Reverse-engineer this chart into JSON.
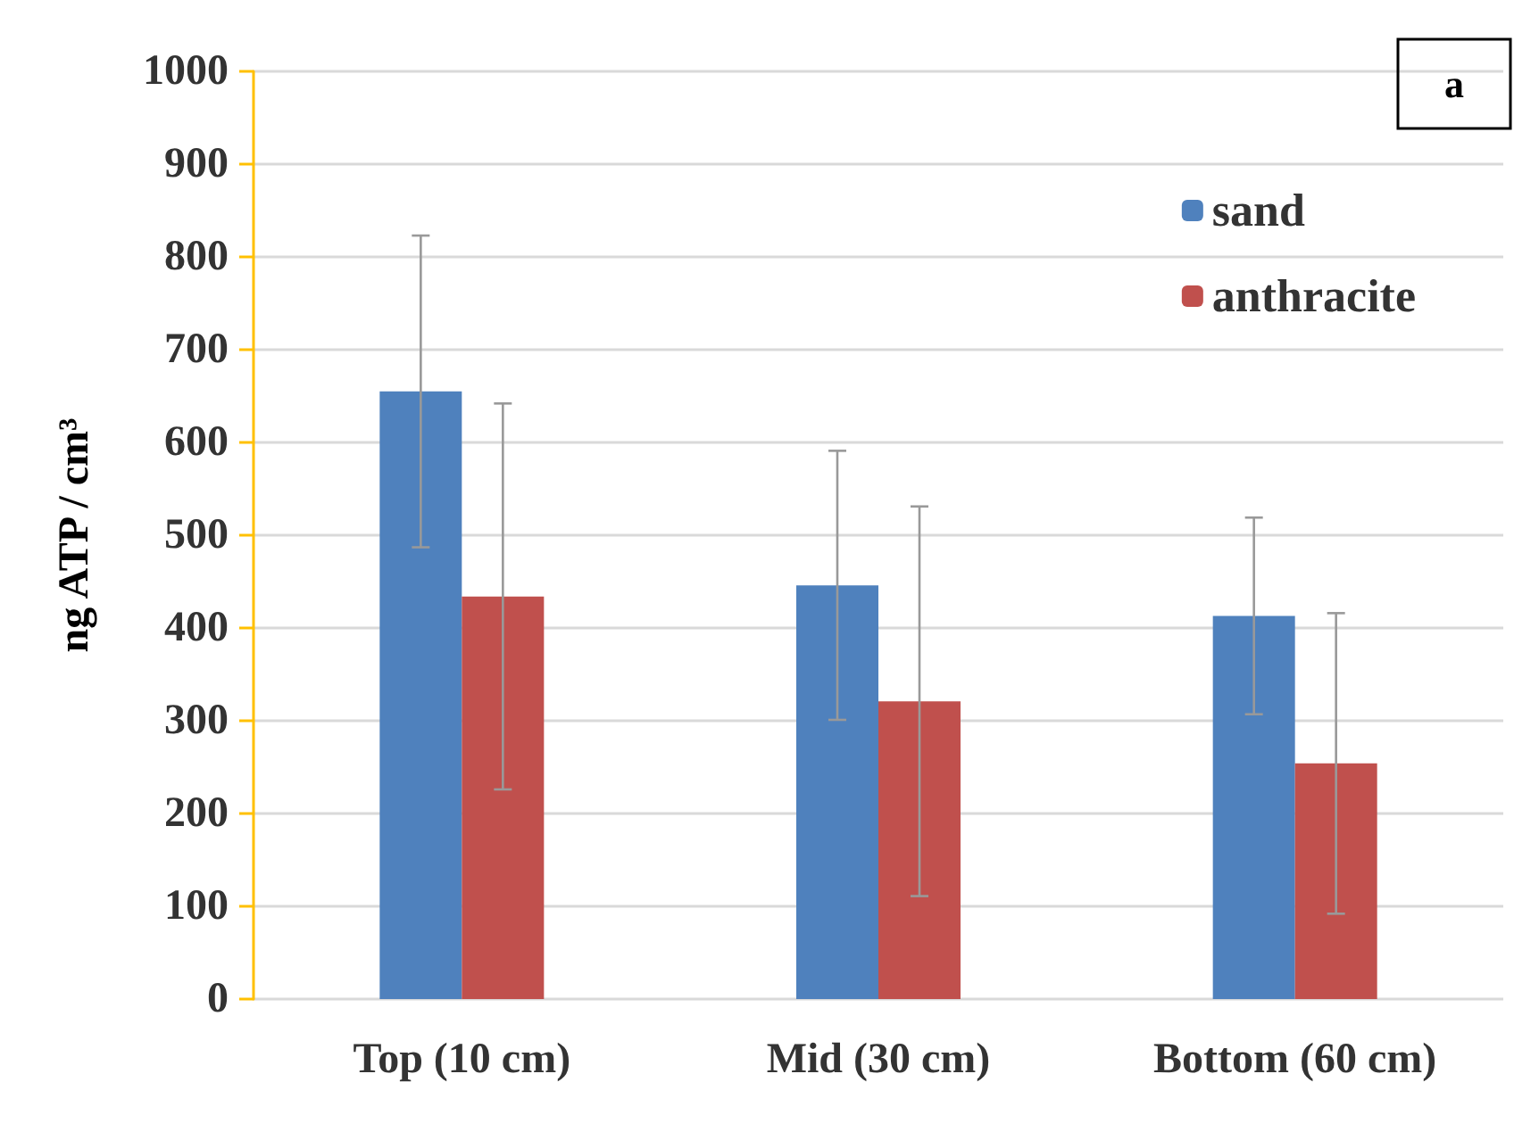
{
  "chart_data": {
    "type": "bar",
    "ylabel": "ng ATP / cm³",
    "annotations": [
      "a"
    ],
    "categories": [
      "Top (10 cm)",
      "Mid (30 cm)",
      "Bottom (60 cm)"
    ],
    "series": [
      {
        "name": "sand",
        "color": "#4f81bd",
        "values": [
          655,
          446,
          413
        ],
        "errors": [
          168,
          145,
          106
        ]
      },
      {
        "name": "anthracite",
        "color": "#c0504d",
        "values": [
          434,
          321,
          254
        ],
        "errors": [
          208,
          210,
          162
        ]
      }
    ],
    "ylim": [
      0,
      1000
    ],
    "yticks": [
      0,
      100,
      200,
      300,
      400,
      500,
      600,
      700,
      800,
      900,
      1000
    ],
    "grid": "y",
    "legend": "top right"
  }
}
